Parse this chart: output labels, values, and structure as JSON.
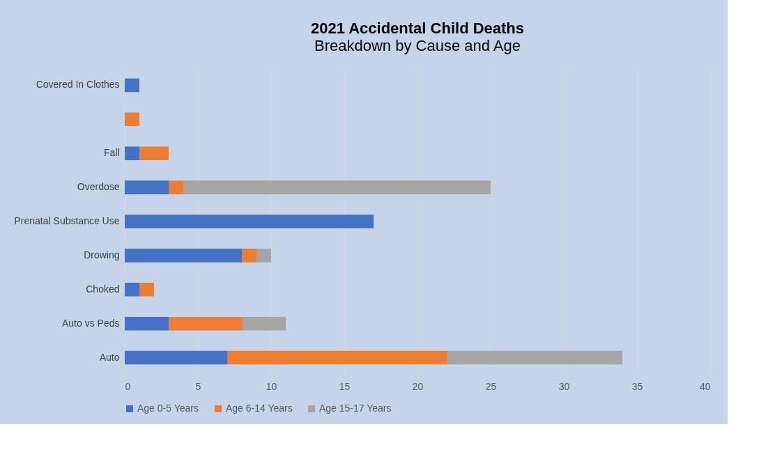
{
  "chart_data": {
    "type": "bar",
    "orientation": "horizontal",
    "stacked": true,
    "title": "2021 Accidental Child Deaths",
    "subtitle": "Breakdown by Cause and Age",
    "categories": [
      "Covered In Clothes",
      null,
      "Fall",
      "Overdose",
      "Prenatal Substance Use",
      "Drowing",
      "Choked",
      "Auto vs Peds",
      "Auto"
    ],
    "series": [
      {
        "name": "Age 0-5 Years",
        "color": "#4472c4",
        "values": [
          1,
          null,
          1,
          3,
          17,
          8,
          1,
          3,
          7
        ]
      },
      {
        "name": "Age 6-14 Years",
        "color": "#ed7d31",
        "values": [
          null,
          1,
          2,
          1,
          null,
          1,
          1,
          5,
          15
        ]
      },
      {
        "name": "Age 15-17 Years",
        "color": "#a5a5a5",
        "values": [
          null,
          null,
          null,
          21,
          null,
          1,
          null,
          3,
          12
        ]
      }
    ],
    "xlim": [
      0,
      40
    ],
    "xticks": [
      0,
      5,
      10,
      15,
      20,
      25,
      30,
      35,
      40
    ],
    "grid": "x",
    "legend": "bottom"
  }
}
